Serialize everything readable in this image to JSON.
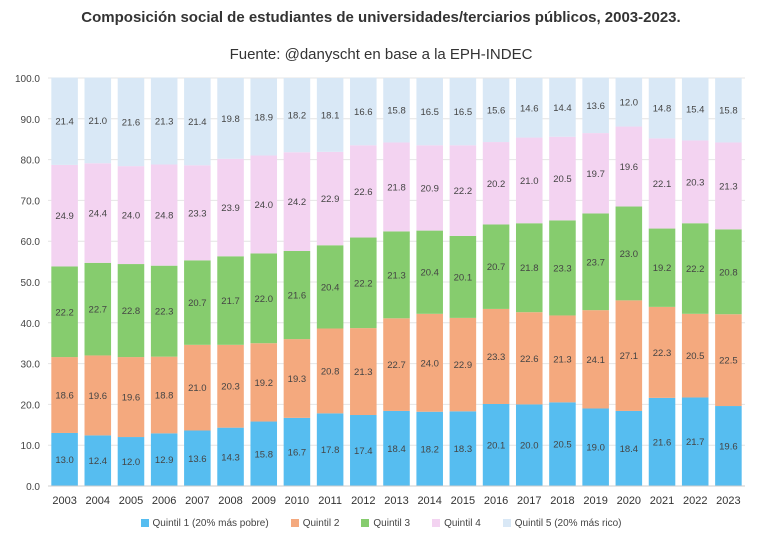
{
  "chart_data": {
    "type": "bar",
    "stacked": true,
    "title": "Composición social de estudiantes de universidades/terciarios públicos, 2003-2023.",
    "subtitle": "Fuente: @danyscht en base a la EPH-INDEC",
    "ylim": [
      0,
      100
    ],
    "yticks": [
      "0.0",
      "10.0",
      "20.0",
      "30.0",
      "40.0",
      "50.0",
      "60.0",
      "70.0",
      "80.0",
      "90.0",
      "100.0"
    ],
    "grid": true,
    "legend_position": "bottom",
    "categories": [
      "2003",
      "2004",
      "2005",
      "2006",
      "2007",
      "2008",
      "2009",
      "2010",
      "2011",
      "2012",
      "2013",
      "2014",
      "2015",
      "2016",
      "2017",
      "2018",
      "2019",
      "2020",
      "2021",
      "2022",
      "2023"
    ],
    "series": [
      {
        "name": "Quintil 1 (20% más pobre)",
        "color": "#56bdf0",
        "values": [
          13.0,
          12.4,
          12.0,
          12.9,
          13.6,
          14.3,
          15.8,
          16.7,
          17.8,
          17.4,
          18.4,
          18.2,
          18.3,
          20.1,
          20.0,
          20.5,
          19.0,
          18.4,
          21.6,
          21.7,
          19.6
        ]
      },
      {
        "name": "Quintil 2",
        "color": "#f4a97e",
        "values": [
          18.6,
          19.6,
          19.6,
          18.8,
          21.0,
          20.3,
          19.2,
          19.3,
          20.8,
          21.3,
          22.7,
          24.0,
          22.9,
          23.3,
          22.6,
          21.3,
          24.1,
          27.1,
          22.3,
          20.5,
          22.5
        ]
      },
      {
        "name": "Quintil 3",
        "color": "#86cc6e",
        "values": [
          22.2,
          22.7,
          22.8,
          22.3,
          20.7,
          21.7,
          22.0,
          21.6,
          20.4,
          22.2,
          21.3,
          20.4,
          20.1,
          20.7,
          21.8,
          23.3,
          23.7,
          23.0,
          19.2,
          22.2,
          20.8
        ]
      },
      {
        "name": "Quintil 4",
        "color": "#f3d3f1",
        "values": [
          24.9,
          24.4,
          24.0,
          24.8,
          23.3,
          23.9,
          24.0,
          24.2,
          22.9,
          22.6,
          21.8,
          20.9,
          22.2,
          20.2,
          21.0,
          20.5,
          19.7,
          19.6,
          22.1,
          20.3,
          21.3
        ]
      },
      {
        "name": "Quintil 5 (20% más rico)",
        "color": "#d9e8f6",
        "values": [
          21.4,
          21.0,
          21.6,
          21.3,
          21.4,
          19.8,
          18.9,
          18.2,
          18.1,
          16.6,
          15.8,
          16.5,
          16.5,
          15.6,
          14.6,
          14.4,
          13.6,
          12.0,
          14.8,
          15.4,
          15.8
        ]
      }
    ]
  }
}
